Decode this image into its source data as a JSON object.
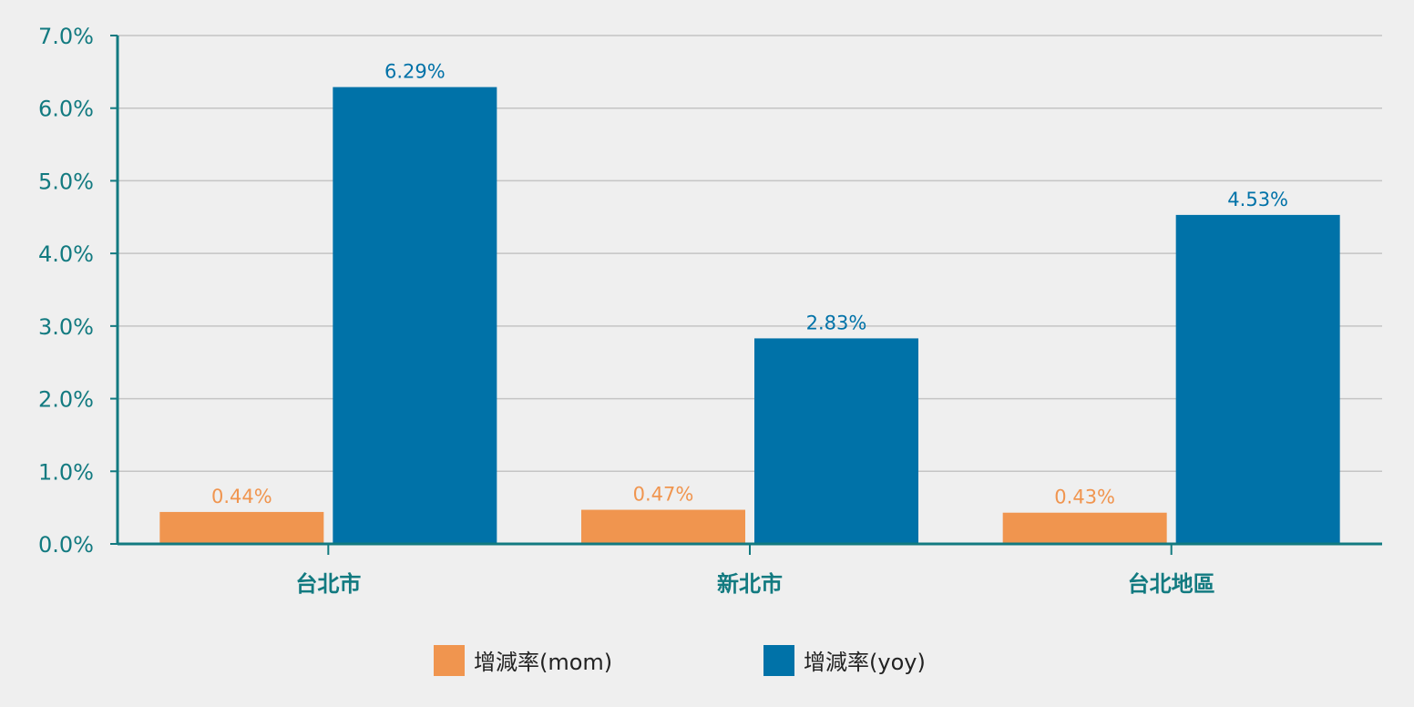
{
  "chart_data": {
    "type": "bar",
    "categories": [
      "台北市",
      "新北市",
      "台北地區"
    ],
    "series": [
      {
        "name": "增減率(mom)",
        "values": [
          0.44,
          0.47,
          0.43
        ],
        "color": "#f0954f",
        "labels": [
          "0.44%",
          "0.47%",
          "0.43%"
        ]
      },
      {
        "name": "增減率(yoy)",
        "values": [
          6.29,
          2.83,
          4.53
        ],
        "color": "#0072a8",
        "labels": [
          "6.29%",
          "2.83%",
          "4.53%"
        ]
      }
    ],
    "ylim": [
      0,
      7
    ],
    "yticks": [
      0,
      1,
      2,
      3,
      4,
      5,
      6,
      7
    ],
    "ytick_labels": [
      "0.0%",
      "1.0%",
      "2.0%",
      "3.0%",
      "4.0%",
      "5.0%",
      "6.0%",
      "7.0%"
    ],
    "grid": true,
    "legend_position": "bottom",
    "axis_color": "#127a80",
    "grid_color": "#c4c4c4",
    "background": "#efefef"
  }
}
